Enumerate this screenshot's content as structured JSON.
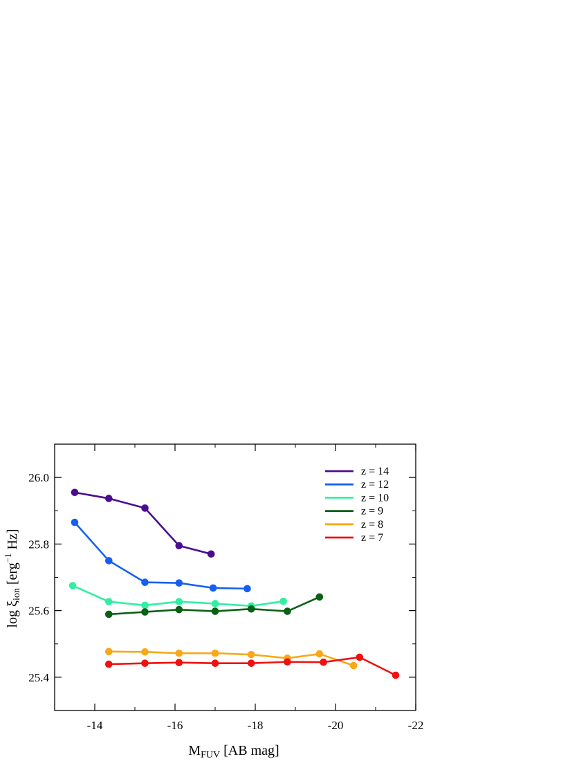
{
  "chart_data": {
    "type": "line",
    "xlabel": "M",
    "xlabel_sub": "FUV",
    "xlabel_rest": " [AB mag]",
    "ylabel_prefix": "log ξ",
    "ylabel_sub": "ion",
    "ylabel_mid": " [erg",
    "ylabel_sup": "−1",
    "ylabel_end": " Hz]",
    "xlim": [
      -13,
      -22
    ],
    "ylim": [
      25.3,
      26.1
    ],
    "x_ticks": [
      -14,
      -16,
      -18,
      -20,
      -22
    ],
    "x_tick_labels": [
      "-14",
      "-16",
      "-18",
      "-20",
      "-22"
    ],
    "y_ticks": [
      25.4,
      25.6,
      25.8,
      26.0
    ],
    "y_tick_labels": [
      "25.4",
      "25.6",
      "25.8",
      "26.0"
    ],
    "legend_position": "top-right",
    "series": [
      {
        "name": "z = 14",
        "color": "#4b0d8f",
        "x": [
          -13.5,
          -14.35,
          -15.25,
          -16.1,
          -16.9
        ],
        "y": [
          25.955,
          25.937,
          25.908,
          25.795,
          25.77
        ]
      },
      {
        "name": "z = 12",
        "color": "#1560f0",
        "x": [
          -13.5,
          -14.35,
          -15.25,
          -16.1,
          -16.95,
          -17.8
        ],
        "y": [
          25.865,
          25.75,
          25.685,
          25.683,
          25.668,
          25.666
        ]
      },
      {
        "name": "z = 10",
        "color": "#2ff0a0",
        "x": [
          -13.45,
          -14.35,
          -15.25,
          -16.1,
          -17.0,
          -17.9,
          -18.7
        ],
        "y": [
          25.675,
          25.627,
          25.616,
          25.627,
          25.621,
          25.614,
          25.628
        ]
      },
      {
        "name": "z = 9",
        "color": "#0a6014",
        "x": [
          -14.35,
          -15.25,
          -16.1,
          -17.0,
          -17.9,
          -18.8,
          -19.6
        ],
        "y": [
          25.589,
          25.596,
          25.603,
          25.598,
          25.605,
          25.598,
          25.641
        ]
      },
      {
        "name": "z = 8",
        "color": "#f8a818",
        "x": [
          -14.35,
          -15.25,
          -16.1,
          -17.0,
          -17.9,
          -18.8,
          -19.6,
          -20.45
        ],
        "y": [
          25.477,
          25.476,
          25.472,
          25.472,
          25.468,
          25.457,
          25.47,
          25.435
        ]
      },
      {
        "name": "z = 7",
        "color": "#f01010",
        "x": [
          -14.35,
          -15.25,
          -16.1,
          -17.0,
          -17.9,
          -18.8,
          -19.7,
          -20.6,
          -21.5
        ],
        "y": [
          25.439,
          25.442,
          25.444,
          25.442,
          25.442,
          25.446,
          25.445,
          25.46,
          25.406
        ]
      }
    ]
  }
}
